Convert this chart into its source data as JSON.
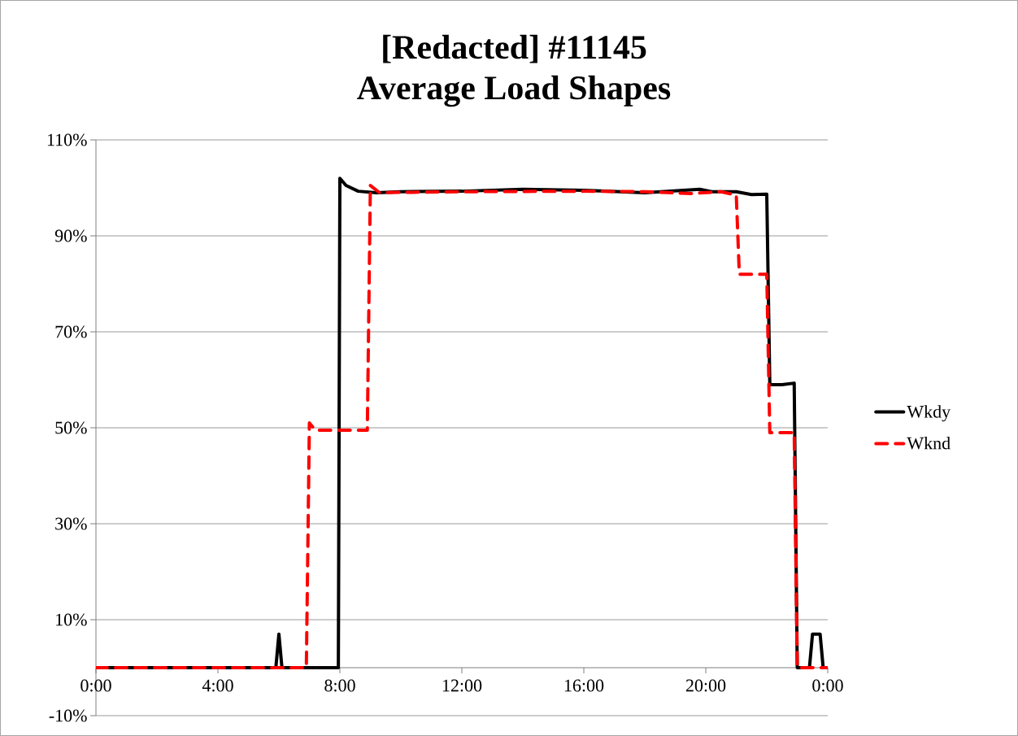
{
  "chart_data": {
    "type": "line",
    "title": "[Redacted] #11145",
    "subtitle": "Average Load Shapes",
    "series": [
      {
        "name": "Wkdy",
        "color": "#000000",
        "line_style": "solid",
        "x": [
          0,
          5.9,
          6.0,
          6.1,
          7.95,
          8.0,
          8.2,
          8.6,
          9.2,
          10,
          12,
          14,
          16,
          18,
          19.8,
          20.2,
          21,
          21.5,
          22.0,
          22.1,
          22.5,
          22.9,
          23.0,
          23.4,
          23.5,
          23.75,
          23.85,
          24
        ],
        "values": [
          0,
          0,
          7,
          0,
          0,
          102,
          100.5,
          99.3,
          99,
          99.2,
          99.3,
          99.7,
          99.5,
          99,
          99.7,
          99.2,
          99.2,
          98.6,
          98.7,
          59,
          59,
          59.3,
          0,
          0,
          7,
          7,
          0,
          0
        ]
      },
      {
        "name": "Wknd",
        "color": "#ff0000",
        "line_style": "dashed",
        "x": [
          0,
          6.9,
          7.0,
          7.2,
          8.9,
          9.0,
          9.3,
          12,
          16,
          18,
          19.5,
          20.5,
          21.0,
          21.1,
          22.0,
          22.1,
          22.9,
          23.0,
          24
        ],
        "values": [
          0,
          0,
          51,
          49.5,
          49.5,
          100.5,
          99,
          99.2,
          99.3,
          99.2,
          98.8,
          99.2,
          98.5,
          82,
          82,
          49,
          49,
          0,
          0
        ]
      }
    ],
    "xlim": [
      0,
      24
    ],
    "xticks": [
      {
        "value": 0,
        "label": "0:00"
      },
      {
        "value": 4,
        "label": "4:00"
      },
      {
        "value": 8,
        "label": "8:00"
      },
      {
        "value": 12,
        "label": "12:00"
      },
      {
        "value": 16,
        "label": "16:00"
      },
      {
        "value": 20,
        "label": "20:00"
      },
      {
        "value": 24,
        "label": "0:00"
      }
    ],
    "ylim": [
      -10,
      110
    ],
    "yticks": [
      {
        "value": -10,
        "label": "-10%"
      },
      {
        "value": 10,
        "label": "10%"
      },
      {
        "value": 30,
        "label": "30%"
      },
      {
        "value": 50,
        "label": "50%"
      },
      {
        "value": 70,
        "label": "70%"
      },
      {
        "value": 90,
        "label": "90%"
      },
      {
        "value": 110,
        "label": "110%"
      }
    ],
    "grid": "y",
    "legend": "right"
  }
}
